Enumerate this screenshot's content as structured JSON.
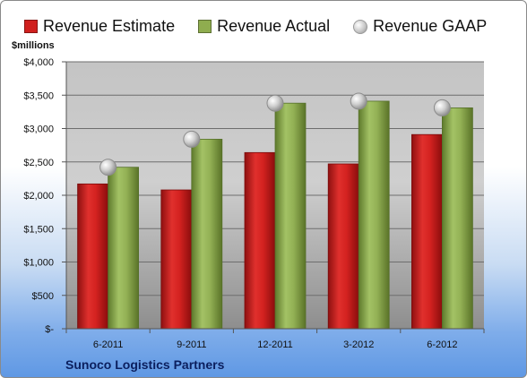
{
  "chart_data": {
    "type": "bar",
    "unit_label": "$millions",
    "company": "Sunoco Logistics Partners",
    "categories": [
      "6-2011",
      "9-2011",
      "12-2011",
      "3-2012",
      "6-2012"
    ],
    "series": [
      {
        "name": "Revenue Estimate",
        "kind": "bar",
        "color": "#d0201e",
        "values": [
          2170,
          2080,
          2640,
          2470,
          2910
        ]
      },
      {
        "name": "Revenue Actual",
        "kind": "bar",
        "color": "#8fad4f",
        "values": [
          2420,
          2840,
          3380,
          3410,
          3310
        ]
      },
      {
        "name": "Revenue GAAP",
        "kind": "marker",
        "color": "#c0c0c0",
        "values": [
          2420,
          2840,
          3380,
          3410,
          3310
        ]
      }
    ],
    "y_ticks": [
      0,
      500,
      1000,
      1500,
      2000,
      2500,
      3000,
      3500,
      4000
    ],
    "y_tick_labels": [
      "$-",
      "$500",
      "$1,000",
      "$1,500",
      "$2,000",
      "$2,500",
      "$3,000",
      "$3,500",
      "$4,000"
    ],
    "ylim": [
      0,
      4000
    ],
    "grid": true,
    "legend_position": "top"
  }
}
